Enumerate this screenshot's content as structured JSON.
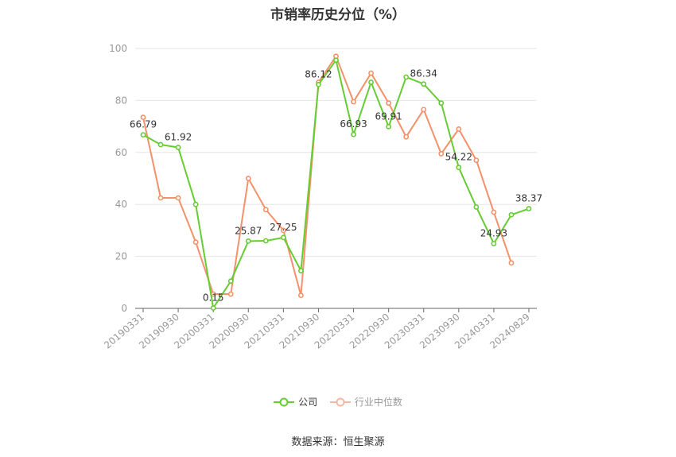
{
  "colors": {
    "company": "#66cc33",
    "industry": "#f4916a",
    "grid": "#e6e6e6",
    "axis": "#666666",
    "tick_text": "#999999"
  },
  "legend": {
    "company_label": "公司",
    "industry_label": "行业中位数"
  },
  "source": "数据来源：恒生聚源",
  "chart_data": {
    "type": "line",
    "title": "市销率历史分位（%）",
    "xlabel": "",
    "ylabel": "",
    "ylim": [
      0,
      100
    ],
    "yticks": [
      0,
      20,
      40,
      60,
      80,
      100
    ],
    "grid": true,
    "legend_position": "bottom",
    "x": [
      "20190331",
      "20190630",
      "20190930",
      "20191231",
      "20200331",
      "20200630",
      "20200930",
      "20201231",
      "20210331",
      "20210630",
      "20210930",
      "20211231",
      "20220331",
      "20220630",
      "20220930",
      "20221231",
      "20230331",
      "20230630",
      "20230930",
      "20231231",
      "20240331",
      "20240630",
      "20240829"
    ],
    "x_tick_labels": [
      "20190331",
      "20190930",
      "20200331",
      "20200930",
      "20210331",
      "20210930",
      "20220331",
      "20220930",
      "20230331",
      "20230930",
      "20240331",
      "20240829"
    ],
    "series": [
      {
        "name": "公司",
        "color": "#66cc33",
        "values": [
          66.79,
          63.0,
          61.92,
          40.0,
          0.15,
          10.5,
          25.87,
          26.0,
          27.25,
          14.5,
          86.12,
          95.5,
          66.93,
          87.0,
          69.91,
          89.0,
          86.34,
          79.0,
          54.22,
          39.0,
          24.93,
          36.0,
          38.37
        ],
        "labels": {
          "0": "66.79",
          "2": "61.92",
          "4": "0.15",
          "6": "25.87",
          "8": "27.25",
          "10": "86.12",
          "12": "66.93",
          "14": "69.91",
          "16": "86.34",
          "18": "54.22",
          "20": "24.93",
          "22": "38.37"
        }
      },
      {
        "name": "行业中位数",
        "color": "#f4916a",
        "values": [
          73.5,
          42.5,
          42.5,
          25.5,
          5.5,
          5.5,
          50.0,
          38.0,
          30.0,
          5.0,
          87.0,
          97.0,
          79.5,
          90.5,
          79.0,
          66.0,
          76.5,
          59.5,
          69.0,
          57.0,
          37.0,
          17.5,
          null
        ]
      }
    ]
  }
}
